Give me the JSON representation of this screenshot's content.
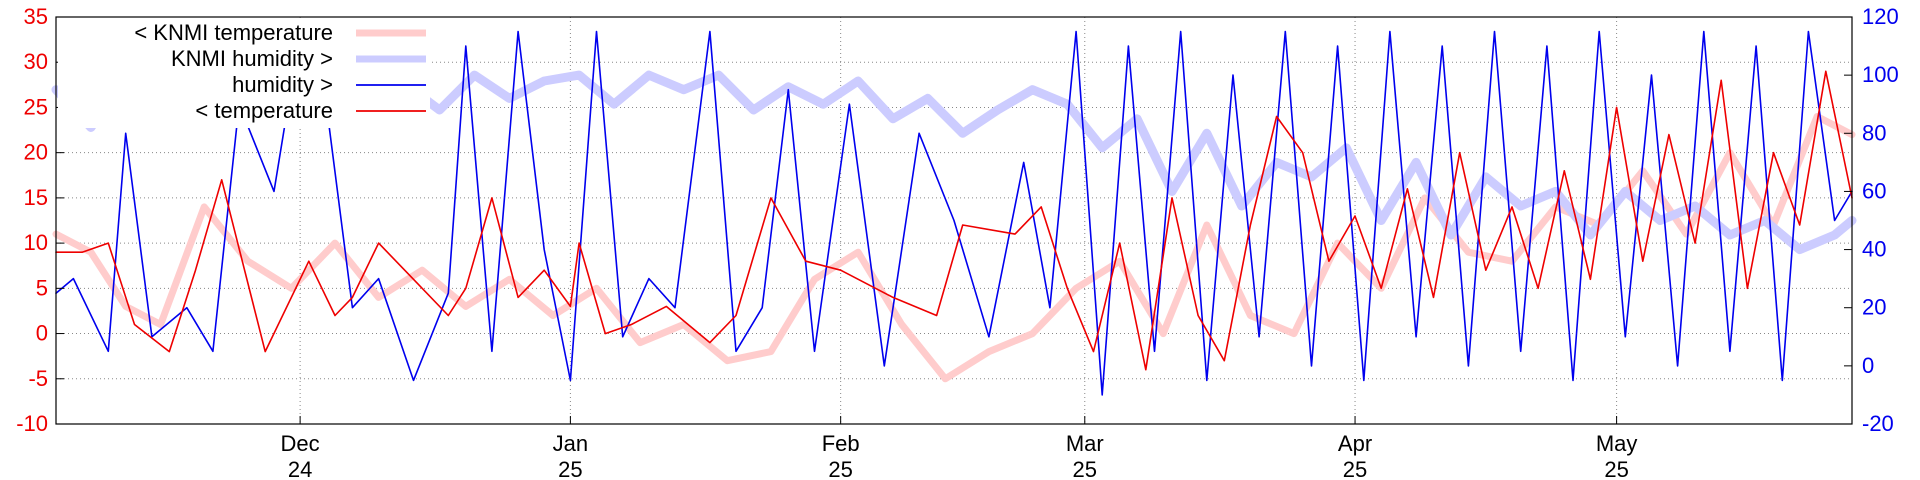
{
  "chart_data": {
    "type": "line",
    "title": "",
    "xlabel": "",
    "ylabel_left": "",
    "ylabel_right": "",
    "ylim_left": [
      -10,
      35
    ],
    "ylim_right": [
      -20,
      120
    ],
    "x_range": [
      "2024-11-03",
      "2025-05-28"
    ],
    "grid": true,
    "legend_position": "top-left",
    "colors": {
      "knmi_temperature": "#ffcccc",
      "knmi_humidity": "#ccccff",
      "humidity": "#0000ee",
      "temperature": "#ee0000",
      "left_axis": "#ee0000",
      "right_axis": "#0000ee"
    },
    "left_ticks": [
      "35",
      "30",
      "25",
      "20",
      "15",
      "10",
      "5",
      "0",
      "-5",
      "-10"
    ],
    "right_ticks": [
      "120",
      "100",
      "80",
      "60",
      "40",
      "20",
      "0",
      "-20"
    ],
    "x_ticks": [
      {
        "date": "2024-12-01",
        "month": "Dec",
        "year": "24"
      },
      {
        "date": "2025-01-01",
        "month": "Jan",
        "year": "25"
      },
      {
        "date": "2025-02-01",
        "month": "Feb",
        "year": "25"
      },
      {
        "date": "2025-03-01",
        "month": "Mar",
        "year": "25"
      },
      {
        "date": "2025-04-01",
        "month": "Apr",
        "year": "25"
      },
      {
        "date": "2025-05-01",
        "month": "May",
        "year": "25"
      }
    ],
    "legend": [
      {
        "key": "knmi_temperature",
        "label": "< KNMI temperature"
      },
      {
        "key": "knmi_humidity",
        "label": "KNMI humidity >"
      },
      {
        "key": "humidity",
        "label": "humidity >"
      },
      {
        "key": "temperature",
        "label": "< temperature"
      }
    ],
    "series": [
      {
        "key": "temperature",
        "axis": "left",
        "x": [
          "2024-11-03",
          "2024-11-06",
          "2024-11-09",
          "2024-11-12",
          "2024-11-16",
          "2024-11-19",
          "2024-11-22",
          "2024-11-27",
          "2024-12-02",
          "2024-12-05",
          "2024-12-07",
          "2024-12-10",
          "2024-12-14",
          "2024-12-18",
          "2024-12-20",
          "2024-12-23",
          "2024-12-26",
          "2024-12-29",
          "2025-01-01",
          "2025-01-02",
          "2025-01-05",
          "2025-01-08",
          "2025-01-12",
          "2025-01-17",
          "2025-01-20",
          "2025-01-24",
          "2025-01-28",
          "2025-02-01",
          "2025-02-07",
          "2025-02-12",
          "2025-02-15",
          "2025-02-21",
          "2025-02-24",
          "2025-02-27",
          "2025-03-02",
          "2025-03-05",
          "2025-03-08",
          "2025-03-11",
          "2025-03-14",
          "2025-03-17",
          "2025-03-20",
          "2025-03-23",
          "2025-03-26",
          "2025-03-29",
          "2025-04-01",
          "2025-04-04",
          "2025-04-07",
          "2025-04-10",
          "2025-04-13",
          "2025-04-16",
          "2025-04-19",
          "2025-04-22",
          "2025-04-25",
          "2025-04-28",
          "2025-05-01",
          "2025-05-04",
          "2025-05-07",
          "2025-05-10",
          "2025-05-13",
          "2025-05-16",
          "2025-05-19",
          "2025-05-22",
          "2025-05-25",
          "2025-05-28"
        ],
        "y": [
          9,
          9,
          10,
          1,
          -2,
          7,
          17,
          -2,
          8,
          2,
          4,
          10,
          6,
          2,
          5,
          15,
          4,
          7,
          3,
          10,
          0,
          1,
          3,
          -1,
          2,
          15,
          8,
          7,
          4,
          2,
          12,
          11,
          14,
          5,
          -2,
          10,
          -4,
          15,
          2,
          -3,
          12,
          24,
          20,
          8,
          13,
          5,
          16,
          4,
          20,
          7,
          14,
          5,
          18,
          6,
          25,
          8,
          22,
          10,
          28,
          5,
          20,
          12,
          29,
          15
        ]
      },
      {
        "key": "knmi_temperature",
        "axis": "left",
        "x": [
          "2024-11-03",
          "2024-11-07",
          "2024-11-11",
          "2024-11-15",
          "2024-11-20",
          "2024-11-25",
          "2024-11-30",
          "2024-12-05",
          "2024-12-10",
          "2024-12-15",
          "2024-12-20",
          "2024-12-25",
          "2024-12-30",
          "2025-01-04",
          "2025-01-09",
          "2025-01-14",
          "2025-01-19",
          "2025-01-24",
          "2025-01-29",
          "2025-02-03",
          "2025-02-08",
          "2025-02-13",
          "2025-02-18",
          "2025-02-23",
          "2025-02-28",
          "2025-03-05",
          "2025-03-10",
          "2025-03-15",
          "2025-03-20",
          "2025-03-25",
          "2025-03-30",
          "2025-04-04",
          "2025-04-09",
          "2025-04-14",
          "2025-04-19",
          "2025-04-24",
          "2025-04-29",
          "2025-05-04",
          "2025-05-09",
          "2025-05-14",
          "2025-05-19",
          "2025-05-24",
          "2025-05-28"
        ],
        "y": [
          11,
          9,
          3,
          1,
          14,
          8,
          5,
          10,
          4,
          7,
          3,
          6,
          2,
          5,
          -1,
          1,
          -3,
          -2,
          6,
          9,
          1,
          -5,
          -2,
          0,
          5,
          8,
          0,
          12,
          2,
          0,
          10,
          5,
          15,
          9,
          8,
          14,
          12,
          18,
          11,
          20,
          12,
          24,
          22
        ]
      },
      {
        "key": "humidity",
        "axis": "right",
        "x": [
          "2024-11-03",
          "2024-11-05",
          "2024-11-09",
          "2024-11-11",
          "2024-11-14",
          "2024-11-18",
          "2024-11-21",
          "2024-11-24",
          "2024-11-28",
          "2024-12-01",
          "2024-12-04",
          "2024-12-07",
          "2024-12-10",
          "2024-12-14",
          "2024-12-18",
          "2024-12-20",
          "2024-12-23",
          "2024-12-26",
          "2024-12-29",
          "2025-01-01",
          "2025-01-04",
          "2025-01-07",
          "2025-01-10",
          "2025-01-13",
          "2025-01-17",
          "2025-01-20",
          "2025-01-23",
          "2025-01-26",
          "2025-01-29",
          "2025-02-02",
          "2025-02-06",
          "2025-02-10",
          "2025-02-14",
          "2025-02-18",
          "2025-02-22",
          "2025-02-25",
          "2025-02-28",
          "2025-03-03",
          "2025-03-06",
          "2025-03-09",
          "2025-03-12",
          "2025-03-15",
          "2025-03-18",
          "2025-03-21",
          "2025-03-24",
          "2025-03-27",
          "2025-03-30",
          "2025-04-02",
          "2025-04-05",
          "2025-04-08",
          "2025-04-11",
          "2025-04-14",
          "2025-04-17",
          "2025-04-20",
          "2025-04-23",
          "2025-04-26",
          "2025-04-29",
          "2025-05-02",
          "2025-05-05",
          "2025-05-08",
          "2025-05-11",
          "2025-05-14",
          "2025-05-17",
          "2025-05-20",
          "2025-05-23",
          "2025-05-26",
          "2025-05-28"
        ],
        "y": [
          25,
          30,
          5,
          80,
          10,
          20,
          5,
          90,
          60,
          115,
          90,
          20,
          30,
          -5,
          25,
          110,
          5,
          115,
          40,
          -5,
          115,
          10,
          30,
          20,
          115,
          5,
          20,
          95,
          5,
          90,
          0,
          80,
          50,
          10,
          70,
          20,
          115,
          -10,
          110,
          5,
          115,
          -5,
          100,
          10,
          115,
          0,
          110,
          -5,
          115,
          10,
          110,
          0,
          115,
          5,
          110,
          -5,
          115,
          10,
          100,
          0,
          115,
          5,
          110,
          -5,
          115,
          50,
          60
        ]
      },
      {
        "key": "knmi_humidity",
        "axis": "right",
        "x": [
          "2024-11-03",
          "2024-11-07",
          "2024-11-11",
          "2024-11-15",
          "2024-11-19",
          "2024-11-23",
          "2024-11-27",
          "2024-12-01",
          "2024-12-05",
          "2024-12-09",
          "2024-12-13",
          "2024-12-17",
          "2024-12-21",
          "2024-12-25",
          "2024-12-29",
          "2025-01-02",
          "2025-01-06",
          "2025-01-10",
          "2025-01-14",
          "2025-01-18",
          "2025-01-22",
          "2025-01-26",
          "2025-01-30",
          "2025-02-03",
          "2025-02-07",
          "2025-02-11",
          "2025-02-15",
          "2025-02-19",
          "2025-02-23",
          "2025-02-27",
          "2025-03-03",
          "2025-03-07",
          "2025-03-11",
          "2025-03-15",
          "2025-03-19",
          "2025-03-23",
          "2025-03-27",
          "2025-03-31",
          "2025-04-04",
          "2025-04-08",
          "2025-04-12",
          "2025-04-16",
          "2025-04-20",
          "2025-04-24",
          "2025-04-28",
          "2025-05-02",
          "2025-05-06",
          "2025-05-10",
          "2025-05-14",
          "2025-05-18",
          "2025-05-22",
          "2025-05-26",
          "2025-05-28"
        ],
        "y": [
          95,
          82,
          100,
          88,
          96,
          84,
          98,
          85,
          95,
          86,
          97,
          88,
          100,
          92,
          98,
          100,
          90,
          100,
          95,
          100,
          88,
          96,
          90,
          98,
          85,
          92,
          80,
          88,
          95,
          90,
          75,
          85,
          60,
          80,
          55,
          70,
          65,
          75,
          50,
          70,
          45,
          65,
          55,
          60,
          45,
          60,
          50,
          55,
          45,
          50,
          40,
          45,
          50
        ]
      }
    ]
  }
}
